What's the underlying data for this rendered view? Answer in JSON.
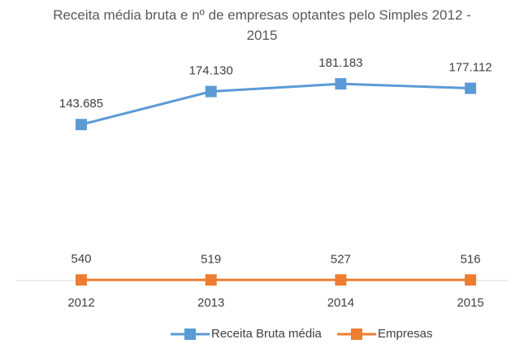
{
  "chart_data": {
    "type": "line",
    "title": "Receita média bruta e nº de empresas optantes pelo Simples 2012 - 2015",
    "categories": [
      "2012",
      "2013",
      "2014",
      "2015"
    ],
    "series": [
      {
        "name": "Receita Bruta média",
        "color": "#5b9bd5",
        "values": [
          143685,
          174130,
          181183,
          177112
        ],
        "value_labels": [
          "143.685",
          "174.130",
          "181.183",
          "177.112"
        ]
      },
      {
        "name": "Empresas",
        "color": "#ed7d31",
        "values": [
          540,
          519,
          527,
          516
        ]
      }
    ],
    "ylim": [
      0,
      200000
    ],
    "legend": "bottom"
  }
}
